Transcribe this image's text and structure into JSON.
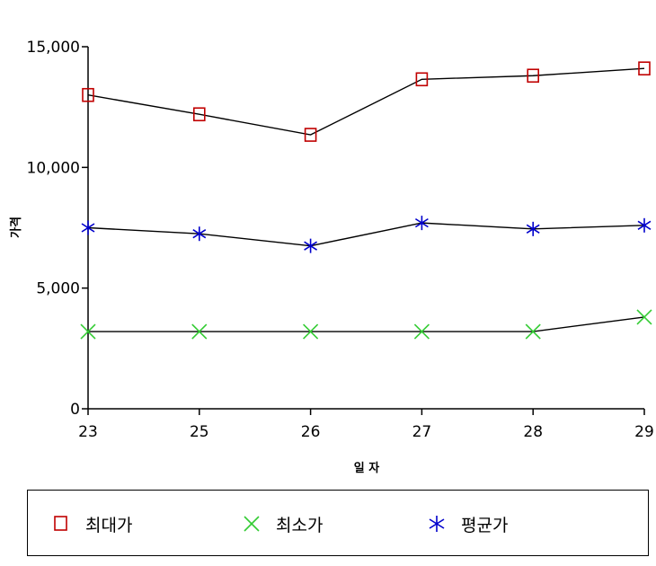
{
  "chart_data": {
    "type": "line",
    "categories": [
      "23",
      "25",
      "26",
      "27",
      "28",
      "29"
    ],
    "ylabel": "가격",
    "xlabel": "일 자",
    "ylim": [
      0,
      15000
    ],
    "yticks": [
      "0",
      "5,000",
      "10,000",
      "15,000"
    ],
    "ytick_values": [
      0,
      5000,
      10000,
      15000
    ],
    "grid": false,
    "legend_placement": "bottom",
    "series": [
      {
        "name": "최대가",
        "marker": "square",
        "color": "#c00000",
        "line_color": "#000000",
        "values": [
          13000,
          12200,
          11350,
          13650,
          13800,
          14100
        ]
      },
      {
        "name": "최소가",
        "marker": "x",
        "color": "#33cc33",
        "line_color": "#000000",
        "values": [
          3200,
          3200,
          3200,
          3200,
          3200,
          3800
        ]
      },
      {
        "name": "평균가",
        "marker": "asterisk",
        "color": "#0000cc",
        "line_color": "#000000",
        "values": [
          7500,
          7250,
          6750,
          7700,
          7450,
          7600
        ]
      }
    ]
  }
}
